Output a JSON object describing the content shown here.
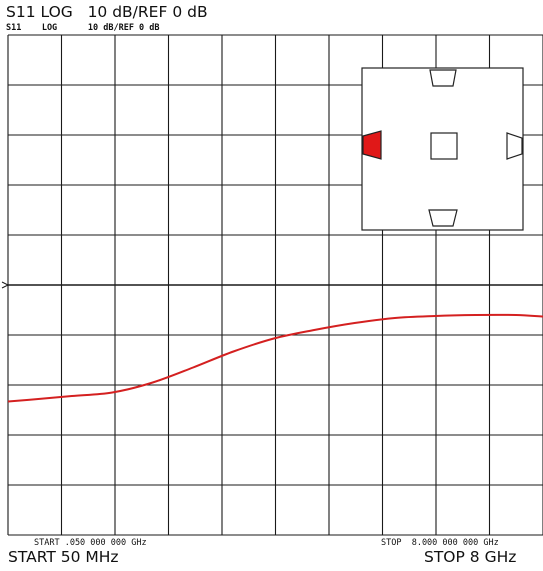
{
  "header": {
    "title": "S11 LOG   10 dB/REF 0 dB",
    "instrument_line": "S11    LOG      10 dB/REF 0 dB"
  },
  "footer": {
    "start_instrument": "START .050 000 000 GHz",
    "stop_instrument": "STOP  8.000 000 000 GHz",
    "start": "START 50 MHz",
    "stop": "STOP 8 GHz"
  },
  "colors": {
    "trace": "#d42020",
    "grid": "#1a1a1a",
    "inset_highlight": "#e01818"
  },
  "chart_data": {
    "type": "line",
    "title": "S11 LOG   10 dB/REF 0 dB",
    "xlabel": "",
    "ylabel": "",
    "x_unit": "GHz",
    "y_unit": "dB",
    "xlim": [
      0.05,
      8.0
    ],
    "ylim": [
      -100,
      0
    ],
    "grid": true,
    "legend": "none",
    "series": [
      {
        "x": [
          0.05,
          0.5,
          1.0,
          1.6,
          2.2,
          2.8,
          3.4,
          4.0,
          4.6,
          5.2,
          5.8,
          6.4,
          7.0,
          7.6,
          8.0
        ],
        "values": [
          -73.3,
          -72.8,
          -72.2,
          -71.5,
          -69.5,
          -66.5,
          -63.3,
          -60.7,
          -59.0,
          -57.6,
          -56.6,
          -56.2,
          -56.0,
          -56.0,
          -56.3
        ]
      }
    ],
    "annotations": [
      {
        "text": "START .050 000 000 GHz",
        "position": "bottom-left"
      },
      {
        "text": "STOP  8.000 000 000 GHz",
        "position": "bottom-right"
      }
    ],
    "inset": {
      "description_shape": "square-with-four-port-markers",
      "highlighted_port": "left"
    }
  }
}
